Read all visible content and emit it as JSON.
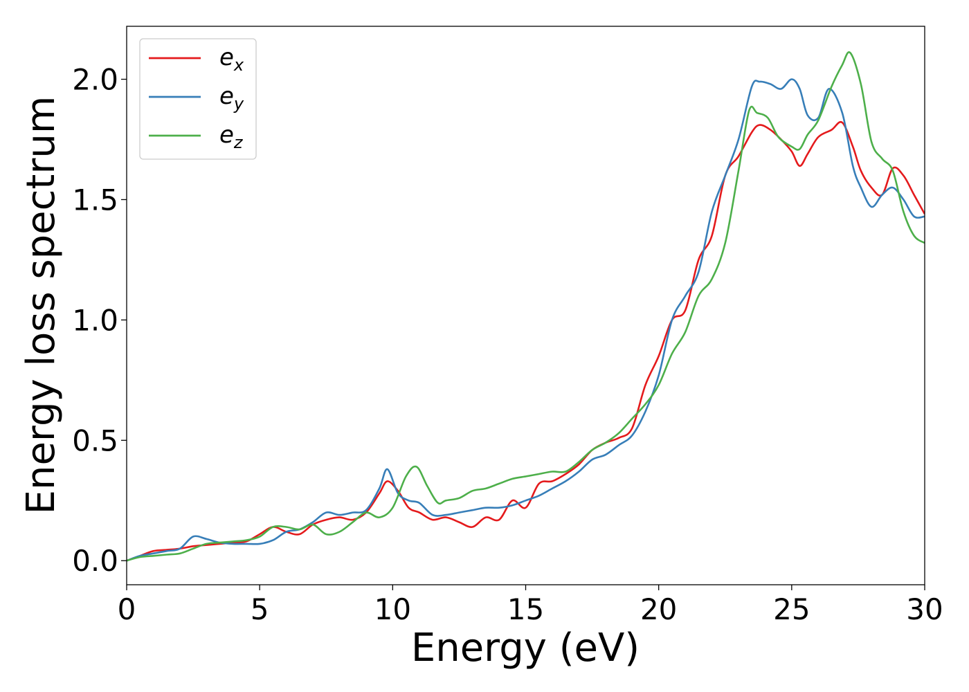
{
  "chart_data": {
    "type": "line",
    "xlabel": "Energy (eV)",
    "ylabel": "Energy loss spectrum",
    "xlim": [
      0,
      30
    ],
    "ylim": [
      -0.1,
      2.22
    ],
    "xticks": [
      0,
      5,
      10,
      15,
      20,
      25,
      30
    ],
    "xtick_labels": [
      "0",
      "5",
      "10",
      "15",
      "20",
      "25",
      "30"
    ],
    "yticks": [
      0.0,
      0.5,
      1.0,
      1.5,
      2.0
    ],
    "ytick_labels": [
      "0.0",
      "0.5",
      "1.0",
      "1.5",
      "2.0"
    ],
    "grid": false,
    "legend_position": "top-left",
    "series": [
      {
        "name": "e_x",
        "label_base": "e",
        "label_sub": "x",
        "color": "#e41a1c",
        "x": [
          0,
          0.5,
          1.0,
          1.5,
          2.0,
          2.5,
          3.0,
          3.5,
          4.0,
          4.5,
          5.0,
          5.5,
          6.0,
          6.5,
          7.0,
          7.5,
          8.0,
          8.5,
          9.0,
          9.5,
          9.8,
          10.2,
          10.6,
          11.0,
          11.5,
          12.0,
          12.5,
          13.0,
          13.5,
          14.0,
          14.5,
          15.0,
          15.5,
          16.0,
          16.5,
          17.0,
          17.5,
          18.0,
          18.5,
          19.0,
          19.5,
          20.0,
          20.5,
          21.0,
          21.5,
          22.0,
          22.5,
          23.0,
          23.5,
          23.8,
          24.2,
          24.6,
          25.0,
          25.3,
          25.6,
          26.0,
          26.5,
          26.9,
          27.3,
          27.6,
          28.0,
          28.4,
          28.8,
          29.2,
          29.6,
          30.0
        ],
        "y": [
          0.0,
          0.02,
          0.04,
          0.045,
          0.05,
          0.06,
          0.065,
          0.07,
          0.075,
          0.08,
          0.11,
          0.14,
          0.12,
          0.11,
          0.15,
          0.17,
          0.18,
          0.17,
          0.2,
          0.28,
          0.33,
          0.29,
          0.22,
          0.2,
          0.17,
          0.18,
          0.16,
          0.14,
          0.18,
          0.17,
          0.25,
          0.22,
          0.32,
          0.33,
          0.36,
          0.4,
          0.46,
          0.49,
          0.51,
          0.55,
          0.73,
          0.85,
          1.0,
          1.04,
          1.25,
          1.35,
          1.6,
          1.68,
          1.78,
          1.81,
          1.79,
          1.75,
          1.7,
          1.64,
          1.69,
          1.76,
          1.79,
          1.82,
          1.72,
          1.62,
          1.55,
          1.52,
          1.63,
          1.6,
          1.52,
          1.44
        ]
      },
      {
        "name": "e_y",
        "label_base": "e",
        "label_sub": "y",
        "color": "#377eb8",
        "x": [
          0,
          0.5,
          1.0,
          1.5,
          2.0,
          2.5,
          3.0,
          3.5,
          4.0,
          4.5,
          5.0,
          5.5,
          6.0,
          6.5,
          7.0,
          7.5,
          8.0,
          8.5,
          9.0,
          9.5,
          9.8,
          10.2,
          10.6,
          11.0,
          11.5,
          12.0,
          12.5,
          13.0,
          13.5,
          14.0,
          14.5,
          15.0,
          15.5,
          16.0,
          16.5,
          17.0,
          17.5,
          18.0,
          18.5,
          19.0,
          19.5,
          20.0,
          20.5,
          21.0,
          21.5,
          22.0,
          22.5,
          23.0,
          23.5,
          23.8,
          24.2,
          24.6,
          25.0,
          25.3,
          25.6,
          26.0,
          26.4,
          26.9,
          27.3,
          27.6,
          28.0,
          28.4,
          28.8,
          29.2,
          29.6,
          30.0
        ],
        "y": [
          0.0,
          0.02,
          0.03,
          0.04,
          0.05,
          0.1,
          0.09,
          0.075,
          0.07,
          0.07,
          0.07,
          0.085,
          0.12,
          0.13,
          0.16,
          0.2,
          0.19,
          0.2,
          0.21,
          0.3,
          0.38,
          0.28,
          0.25,
          0.24,
          0.19,
          0.19,
          0.2,
          0.21,
          0.22,
          0.22,
          0.23,
          0.25,
          0.27,
          0.3,
          0.33,
          0.37,
          0.42,
          0.44,
          0.48,
          0.52,
          0.62,
          0.77,
          1.0,
          1.1,
          1.2,
          1.45,
          1.6,
          1.75,
          1.97,
          1.99,
          1.98,
          1.96,
          2.0,
          1.96,
          1.85,
          1.84,
          1.96,
          1.86,
          1.64,
          1.55,
          1.47,
          1.52,
          1.55,
          1.5,
          1.43,
          1.43
        ]
      },
      {
        "name": "e_z",
        "label_base": "e",
        "label_sub": "z",
        "color": "#4daf4a",
        "x": [
          0,
          0.5,
          1.0,
          1.5,
          2.0,
          2.5,
          3.0,
          3.5,
          4.0,
          4.5,
          5.0,
          5.5,
          6.0,
          6.5,
          7.0,
          7.5,
          8.0,
          8.5,
          9.0,
          9.5,
          10.0,
          10.5,
          10.9,
          11.3,
          11.7,
          12.0,
          12.5,
          13.0,
          13.5,
          14.0,
          14.5,
          15.0,
          15.5,
          16.0,
          16.5,
          17.0,
          17.5,
          18.0,
          18.5,
          19.0,
          19.5,
          20.0,
          20.5,
          21.0,
          21.5,
          22.0,
          22.5,
          23.0,
          23.4,
          23.7,
          24.1,
          24.5,
          25.0,
          25.3,
          25.6,
          26.0,
          26.5,
          26.9,
          27.2,
          27.6,
          28.0,
          28.4,
          28.8,
          29.2,
          29.6,
          30.0
        ],
        "y": [
          0.0,
          0.015,
          0.02,
          0.025,
          0.03,
          0.05,
          0.07,
          0.075,
          0.08,
          0.085,
          0.1,
          0.14,
          0.14,
          0.13,
          0.15,
          0.11,
          0.12,
          0.16,
          0.2,
          0.18,
          0.22,
          0.35,
          0.39,
          0.31,
          0.24,
          0.25,
          0.26,
          0.29,
          0.3,
          0.32,
          0.34,
          0.35,
          0.36,
          0.37,
          0.37,
          0.41,
          0.46,
          0.49,
          0.53,
          0.59,
          0.65,
          0.73,
          0.86,
          0.95,
          1.1,
          1.17,
          1.32,
          1.62,
          1.87,
          1.86,
          1.84,
          1.76,
          1.72,
          1.71,
          1.77,
          1.83,
          1.97,
          2.06,
          2.11,
          1.98,
          1.74,
          1.67,
          1.62,
          1.45,
          1.35,
          1.32
        ]
      }
    ]
  }
}
